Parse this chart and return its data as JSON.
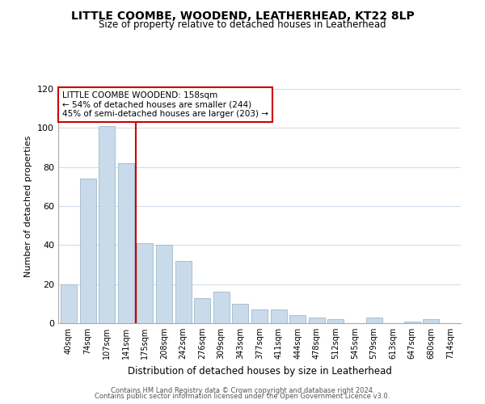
{
  "title": "LITTLE COOMBE, WOODEND, LEATHERHEAD, KT22 8LP",
  "subtitle": "Size of property relative to detached houses in Leatherhead",
  "xlabel": "Distribution of detached houses by size in Leatherhead",
  "ylabel": "Number of detached properties",
  "bar_labels": [
    "40sqm",
    "74sqm",
    "107sqm",
    "141sqm",
    "175sqm",
    "208sqm",
    "242sqm",
    "276sqm",
    "309sqm",
    "343sqm",
    "377sqm",
    "411sqm",
    "444sqm",
    "478sqm",
    "512sqm",
    "545sqm",
    "579sqm",
    "613sqm",
    "647sqm",
    "680sqm",
    "714sqm"
  ],
  "bar_values": [
    20,
    74,
    101,
    82,
    41,
    40,
    32,
    13,
    16,
    10,
    7,
    7,
    4,
    3,
    2,
    0,
    3,
    0,
    1,
    2,
    0
  ],
  "bar_color": "#c9daea",
  "bar_edge_color": "#a0b8cc",
  "vline_x": 3.5,
  "vline_color": "#cc0000",
  "ylim": [
    0,
    120
  ],
  "yticks": [
    0,
    20,
    40,
    60,
    80,
    100,
    120
  ],
  "annotation_text": "LITTLE COOMBE WOODEND: 158sqm\n← 54% of detached houses are smaller (244)\n45% of semi-detached houses are larger (203) →",
  "annotation_box_color": "#ffffff",
  "annotation_box_edge": "#cc0000",
  "footer1": "Contains HM Land Registry data © Crown copyright and database right 2024.",
  "footer2": "Contains public sector information licensed under the Open Government Licence v3.0.",
  "bg_color": "#ffffff",
  "grid_color": "#d0dce8"
}
